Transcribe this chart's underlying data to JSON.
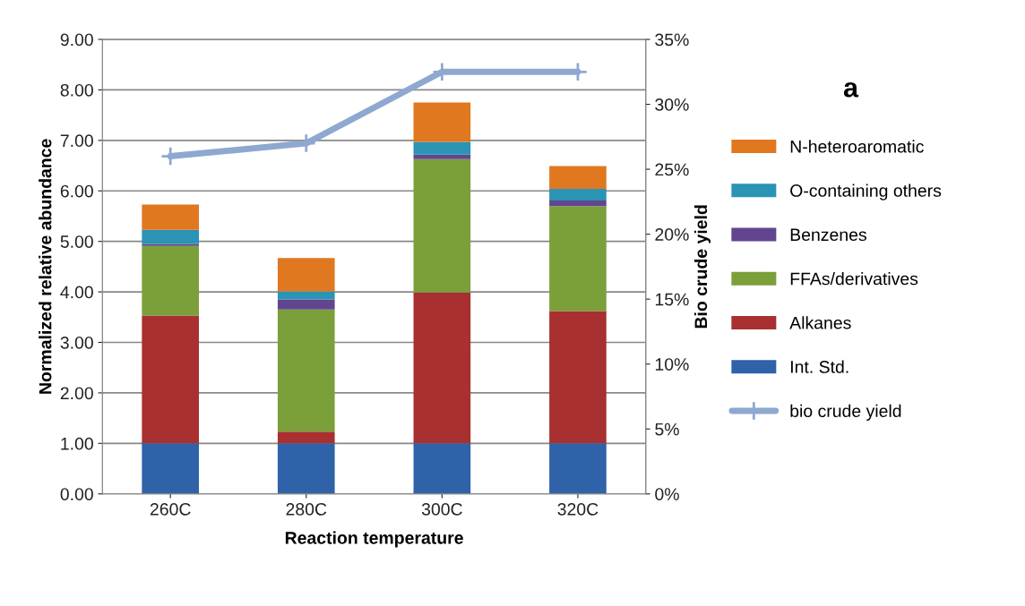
{
  "chart_data": {
    "type": "bar",
    "stacked": true,
    "xlabel": "Reaction temperature",
    "ylabel": "Normalized relative abundance",
    "y2label": "Bio crude yield",
    "categories": [
      "260C",
      "280C",
      "300C",
      "320C"
    ],
    "series": [
      {
        "name": "Int. Std.",
        "color": "#2f62a8",
        "values": [
          1.0,
          1.0,
          1.0,
          1.0
        ]
      },
      {
        "name": "Alkanes",
        "color": "#a83030",
        "values": [
          2.53,
          0.23,
          2.99,
          2.62
        ]
      },
      {
        "name": "FFAs/derivatives",
        "color": "#7ba03a",
        "values": [
          1.38,
          2.42,
          2.64,
          2.08
        ]
      },
      {
        "name": "Benzenes",
        "color": "#62458f",
        "values": [
          0.04,
          0.2,
          0.09,
          0.11
        ]
      },
      {
        "name": "O-containing others",
        "color": "#2b93b4",
        "values": [
          0.28,
          0.16,
          0.25,
          0.23
        ]
      },
      {
        "name": "N-heteroaromatic",
        "color": "#e07820",
        "values": [
          0.5,
          0.66,
          0.78,
          0.45
        ]
      },
      {
        "name": "bio crude yield",
        "type": "line",
        "axis": "y2",
        "color": "#8ea8d0",
        "marker": "cross",
        "values": [
          26,
          27,
          32.5,
          32.5
        ]
      }
    ],
    "ylim": [
      0,
      9
    ],
    "yticks": [
      {
        "value": 0,
        "label": "0.00"
      },
      {
        "value": 1,
        "label": "1.00"
      },
      {
        "value": 2,
        "label": "2.00"
      },
      {
        "value": 3,
        "label": "3.00"
      },
      {
        "value": 4,
        "label": "4.00"
      },
      {
        "value": 5,
        "label": "5.00"
      },
      {
        "value": 6,
        "label": "6.00"
      },
      {
        "value": 7,
        "label": "7.00"
      },
      {
        "value": 8,
        "label": "8.00"
      },
      {
        "value": 9,
        "label": "9.00"
      }
    ],
    "y2lim": [
      0,
      35
    ],
    "y2ticks": [
      {
        "value": 0,
        "label": "0%"
      },
      {
        "value": 5,
        "label": "5%"
      },
      {
        "value": 10,
        "label": "10%"
      },
      {
        "value": 15,
        "label": "15%"
      },
      {
        "value": 20,
        "label": "20%"
      },
      {
        "value": 25,
        "label": "25%"
      },
      {
        "value": 30,
        "label": "30%"
      },
      {
        "value": 35,
        "label": "35%"
      }
    ],
    "grid": "y",
    "legend": "right",
    "annotations": [
      "a"
    ]
  }
}
